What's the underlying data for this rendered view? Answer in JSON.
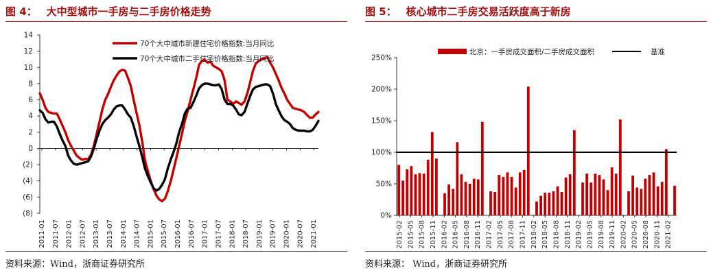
{
  "left": {
    "title_num": "图 4：",
    "title_text": "大中型城市一手房与二手房价格走势",
    "source": "资料来源：Wind，浙商证券研究所"
  },
  "right": {
    "title_num": "图 5：",
    "title_text": "核心城市二手房交易活跃度高于新房",
    "source": "资料来源： Wind，浙商证券研究所"
  },
  "colors": {
    "red": "#c00000",
    "black": "#000000",
    "title": "#a01010"
  },
  "chart_data": [
    {
      "type": "line",
      "title": "大中型城市一手房与二手房价格走势",
      "xlabel": "",
      "ylabel": "",
      "ylim": [
        -8,
        14
      ],
      "y_ticks": [
        14,
        12,
        10,
        8,
        6,
        4,
        2,
        0,
        -2,
        -4,
        -6,
        -8
      ],
      "y_tick_labels": [
        "14",
        "12",
        "10",
        "8",
        "6",
        "4",
        "2",
        "0",
        "(2)",
        "(4)",
        "(6)",
        "(8)"
      ],
      "x_tick_labels": [
        "2011-01",
        "2011-07",
        "2012-01",
        "2012-07",
        "2013-01",
        "2013-07",
        "2014-01",
        "2014-07",
        "2015-01",
        "2015-07",
        "2016-01",
        "2016-07",
        "2017-01",
        "2017-07",
        "2018-01",
        "2018-07",
        "2019-01",
        "2019-07",
        "2020-01",
        "2020-07",
        "2021-01"
      ],
      "legend_position": "top-right",
      "series": [
        {
          "name": "70个大中城市新建住宅价格指数:当月同比",
          "color": "#c00000",
          "points": [
            [
              0,
              6.8
            ],
            [
              1,
              6.0
            ],
            [
              2,
              5.0
            ],
            [
              3,
              4.5
            ],
            [
              4,
              4.4
            ],
            [
              5,
              4.3
            ],
            [
              6,
              4.3
            ],
            [
              7,
              3.6
            ],
            [
              8,
              2.8
            ],
            [
              9,
              2.0
            ],
            [
              10,
              1.0
            ],
            [
              11,
              0.3
            ],
            [
              12,
              -0.3
            ],
            [
              13,
              -0.9
            ],
            [
              14,
              -1.2
            ],
            [
              15,
              -1.4
            ],
            [
              16,
              -1.3
            ],
            [
              17,
              -1.3
            ],
            [
              18,
              -0.8
            ],
            [
              19,
              0.3
            ],
            [
              20,
              1.8
            ],
            [
              21,
              3.3
            ],
            [
              22,
              4.8
            ],
            [
              23,
              6.0
            ],
            [
              24,
              6.7
            ],
            [
              25,
              7.6
            ],
            [
              26,
              8.4
            ],
            [
              27,
              9.0
            ],
            [
              28,
              9.5
            ],
            [
              29,
              9.7
            ],
            [
              30,
              9.6
            ],
            [
              31,
              8.7
            ],
            [
              32,
              7.7
            ],
            [
              33,
              6.0
            ],
            [
              34,
              4.4
            ],
            [
              35,
              2.9
            ],
            [
              36,
              0.9
            ],
            [
              37,
              -1.5
            ],
            [
              38,
              -2.8
            ],
            [
              39,
              -4.0
            ],
            [
              40,
              -5.0
            ],
            [
              41,
              -5.8
            ],
            [
              42,
              -6.3
            ],
            [
              43,
              -6.5
            ],
            [
              44,
              -6.2
            ],
            [
              45,
              -5.3
            ],
            [
              46,
              -4.1
            ],
            [
              47,
              -2.7
            ],
            [
              48,
              -1.2
            ],
            [
              49,
              0.3
            ],
            [
              50,
              1.8
            ],
            [
              51,
              3.4
            ],
            [
              52,
              4.6
            ],
            [
              53,
              6.0
            ],
            [
              54,
              7.3
            ],
            [
              55,
              8.7
            ],
            [
              56,
              10.3
            ],
            [
              57,
              10.8
            ],
            [
              58,
              10.9
            ],
            [
              59,
              10.6
            ],
            [
              60,
              10.7
            ],
            [
              61,
              10.2
            ],
            [
              62,
              10.0
            ],
            [
              63,
              9.8
            ],
            [
              64,
              9.5
            ],
            [
              65,
              8.4
            ],
            [
              66,
              6.0
            ],
            [
              67,
              5.8
            ],
            [
              68,
              5.5
            ],
            [
              69,
              5.8
            ],
            [
              70,
              5.6
            ],
            [
              71,
              5.4
            ],
            [
              72,
              5.8
            ],
            [
              73,
              6.8
            ],
            [
              74,
              8.2
            ],
            [
              75,
              9.6
            ],
            [
              76,
              10.5
            ],
            [
              77,
              10.8
            ],
            [
              78,
              11.0
            ],
            [
              79,
              11.1
            ],
            [
              80,
              11.3
            ],
            [
              81,
              10.6
            ],
            [
              82,
              10.0
            ],
            [
              83,
              9.2
            ],
            [
              84,
              8.4
            ],
            [
              85,
              7.5
            ],
            [
              86,
              6.8
            ],
            [
              87,
              6.0
            ],
            [
              88,
              5.5
            ],
            [
              89,
              5.0
            ],
            [
              90,
              4.9
            ],
            [
              91,
              4.8
            ],
            [
              92,
              4.7
            ],
            [
              93,
              4.5
            ],
            [
              94,
              4.1
            ],
            [
              95,
              3.8
            ],
            [
              96,
              3.8
            ],
            [
              97,
              4.2
            ],
            [
              98,
              4.5
            ]
          ]
        },
        {
          "name": "70个大中城市二手住宅价格指数:当月同比",
          "color": "#000000",
          "points": [
            [
              0,
              4.7
            ],
            [
              1,
              4.4
            ],
            [
              2,
              3.6
            ],
            [
              3,
              3.2
            ],
            [
              4,
              3.3
            ],
            [
              5,
              3.3
            ],
            [
              6,
              2.7
            ],
            [
              7,
              1.8
            ],
            [
              8,
              1.0
            ],
            [
              9,
              0.3
            ],
            [
              10,
              -0.9
            ],
            [
              11,
              -1.5
            ],
            [
              12,
              -1.9
            ],
            [
              13,
              -2.0
            ],
            [
              14,
              -1.9
            ],
            [
              15,
              -1.8
            ],
            [
              16,
              -1.7
            ],
            [
              17,
              -1.6
            ],
            [
              18,
              -1.0
            ],
            [
              19,
              0.0
            ],
            [
              20,
              1.2
            ],
            [
              21,
              2.2
            ],
            [
              22,
              3.0
            ],
            [
              23,
              3.5
            ],
            [
              24,
              3.8
            ],
            [
              25,
              4.2
            ],
            [
              26,
              4.8
            ],
            [
              27,
              5.2
            ],
            [
              28,
              5.3
            ],
            [
              29,
              5.3
            ],
            [
              30,
              4.8
            ],
            [
              31,
              4.2
            ],
            [
              32,
              3.8
            ],
            [
              33,
              2.8
            ],
            [
              34,
              1.5
            ],
            [
              35,
              0.3
            ],
            [
              36,
              -1.0
            ],
            [
              37,
              -2.5
            ],
            [
              38,
              -3.4
            ],
            [
              39,
              -4.2
            ],
            [
              40,
              -4.9
            ],
            [
              41,
              -5.2
            ],
            [
              42,
              -5.0
            ],
            [
              43,
              -4.5
            ],
            [
              44,
              -3.8
            ],
            [
              45,
              -2.5
            ],
            [
              46,
              -1.4
            ],
            [
              47,
              -0.5
            ],
            [
              48,
              0.6
            ],
            [
              49,
              2.0
            ],
            [
              50,
              3.0
            ],
            [
              51,
              4.3
            ],
            [
              52,
              4.9
            ],
            [
              53,
              5.0
            ],
            [
              54,
              5.7
            ],
            [
              55,
              6.5
            ],
            [
              56,
              7.4
            ],
            [
              57,
              7.8
            ],
            [
              58,
              8.0
            ],
            [
              59,
              8.0
            ],
            [
              60,
              7.9
            ],
            [
              61,
              7.8
            ],
            [
              62,
              7.8
            ],
            [
              63,
              7.9
            ],
            [
              64,
              7.3
            ],
            [
              65,
              6.0
            ],
            [
              66,
              5.5
            ],
            [
              67,
              5.5
            ],
            [
              68,
              5.3
            ],
            [
              69,
              4.8
            ],
            [
              70,
              4.2
            ],
            [
              71,
              4.1
            ],
            [
              72,
              4.5
            ],
            [
              73,
              5.5
            ],
            [
              74,
              6.5
            ],
            [
              75,
              7.3
            ],
            [
              76,
              7.6
            ],
            [
              77,
              7.7
            ],
            [
              78,
              7.8
            ],
            [
              79,
              7.9
            ],
            [
              80,
              7.9
            ],
            [
              81,
              7.7
            ],
            [
              82,
              6.8
            ],
            [
              83,
              5.5
            ],
            [
              84,
              4.7
            ],
            [
              85,
              4.0
            ],
            [
              86,
              3.5
            ],
            [
              87,
              3.3
            ],
            [
              88,
              3.0
            ],
            [
              89,
              2.5
            ],
            [
              90,
              2.3
            ],
            [
              91,
              2.2
            ],
            [
              92,
              2.2
            ],
            [
              93,
              2.2
            ],
            [
              94,
              2.1
            ],
            [
              95,
              2.1
            ],
            [
              96,
              2.3
            ],
            [
              97,
              2.8
            ],
            [
              98,
              3.4
            ]
          ]
        }
      ]
    },
    {
      "type": "bar",
      "title": "核心城市二手房交易活跃度高于新房",
      "xlabel": "",
      "ylabel": "",
      "ylim": [
        0,
        250
      ],
      "y_ticks": [
        0,
        50,
        100,
        150,
        200,
        250
      ],
      "y_tick_labels": [
        "0%",
        "50%",
        "100%",
        "150%",
        "200%",
        "250%"
      ],
      "x_tick_labels": [
        "2015-02",
        "2015-05",
        "2015-08",
        "2015-11",
        "2016-02",
        "2016-05",
        "2016-08",
        "2016-11",
        "2017-02",
        "2017-05",
        "2017-08",
        "2017-11",
        "2018-02",
        "2018-05",
        "2018-08",
        "2018-11",
        "2019-02",
        "2019-05",
        "2019-08",
        "2019-11",
        "2020-02",
        "2020-05",
        "2020-08",
        "2020-11",
        "2021-02"
      ],
      "legend_position": "top",
      "baseline": {
        "name": "基准",
        "value": 100,
        "color": "#000000"
      },
      "series": [
        {
          "name": "北京：一手房成交面积/二手房成交面积",
          "color": "#c00000",
          "values": [
            80,
            55,
            73,
            78,
            65,
            67,
            66,
            88,
            132,
            90,
            null,
            35,
            49,
            42,
            116,
            65,
            53,
            50,
            58,
            57,
            148,
            null,
            38,
            37,
            64,
            61,
            68,
            61,
            44,
            68,
            72,
            204,
            null,
            22,
            31,
            36,
            36,
            38,
            46,
            37,
            60,
            65,
            135,
            null,
            52,
            66,
            52,
            66,
            64,
            57,
            40,
            76,
            66,
            152,
            null,
            38,
            63,
            44,
            42,
            58,
            64,
            68,
            46,
            53,
            105,
            null,
            47
          ]
        }
      ]
    }
  ]
}
